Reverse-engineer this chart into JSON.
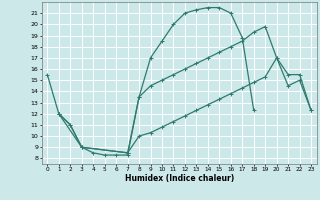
{
  "xlabel": "Humidex (Indice chaleur)",
  "background_color": "#cce8e8",
  "grid_color": "#b0d8d8",
  "line_color": "#2e7b6e",
  "xlim": [
    -0.5,
    23.5
  ],
  "ylim": [
    7.5,
    22.0
  ],
  "xticks": [
    0,
    1,
    2,
    3,
    4,
    5,
    6,
    7,
    8,
    9,
    10,
    11,
    12,
    13,
    14,
    15,
    16,
    17,
    18,
    19,
    20,
    21,
    22,
    23
  ],
  "yticks": [
    8,
    9,
    10,
    11,
    12,
    13,
    14,
    15,
    16,
    17,
    18,
    19,
    20,
    21
  ],
  "curve1_x": [
    0,
    1,
    3,
    4,
    5,
    6,
    7,
    8,
    9,
    10,
    11,
    12,
    13,
    14,
    15,
    16,
    17,
    18
  ],
  "curve1_y": [
    15.5,
    12.0,
    9.0,
    8.5,
    8.3,
    8.3,
    8.3,
    13.5,
    17.0,
    18.5,
    20.0,
    21.0,
    21.3,
    21.5,
    21.5,
    21.0,
    18.8,
    12.3
  ],
  "curve2_x": [
    1,
    2,
    3,
    7,
    8,
    9,
    10,
    11,
    12,
    13,
    14,
    15,
    16,
    17,
    18,
    19,
    20,
    21,
    22,
    23
  ],
  "curve2_y": [
    12.0,
    11.0,
    9.0,
    8.5,
    10.0,
    10.3,
    10.8,
    11.3,
    11.8,
    12.3,
    12.8,
    13.3,
    13.8,
    14.3,
    14.8,
    15.3,
    17.0,
    15.5,
    15.5,
    12.3
  ],
  "curve3_x": [
    1,
    2,
    3,
    7,
    8,
    9,
    10,
    11,
    12,
    13,
    14,
    15,
    16,
    17,
    18,
    19,
    20,
    21,
    22,
    23
  ],
  "curve3_y": [
    12.0,
    11.0,
    9.0,
    8.5,
    13.5,
    14.5,
    15.0,
    15.5,
    16.0,
    16.5,
    17.0,
    17.5,
    18.0,
    18.5,
    19.3,
    19.8,
    17.0,
    14.5,
    15.0,
    12.3
  ]
}
